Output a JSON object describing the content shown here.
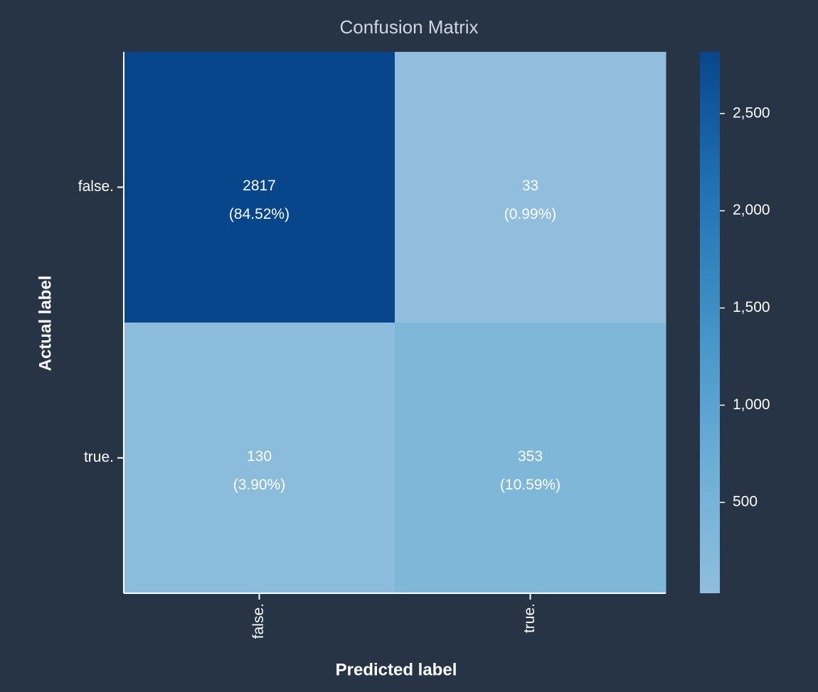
{
  "chart_data": {
    "type": "heatmap",
    "title": "Confusion Matrix",
    "x_label": "Predicted label",
    "y_label": "Actual label",
    "x_categories": [
      "false.",
      "true."
    ],
    "y_categories": [
      "false.",
      "true."
    ],
    "values": [
      [
        2817,
        33
      ],
      [
        130,
        353
      ]
    ],
    "percentages": [
      [
        84.52,
        0.99
      ],
      [
        3.9,
        10.59
      ]
    ],
    "percentage_labels": [
      [
        "(84.52%)",
        "(0.99%)"
      ],
      [
        "(3.90%)",
        "(10.59%)"
      ]
    ],
    "colormap": [
      "#90bedc",
      "#6aaed6",
      "#4292c6",
      "#2171b5",
      "#08468b"
    ],
    "clim": [
      33,
      2817
    ],
    "cticks": [
      {
        "value": 500,
        "label": "500"
      },
      {
        "value": 1000,
        "label": "1,000"
      },
      {
        "value": 1500,
        "label": "1,500"
      },
      {
        "value": 2000,
        "label": "2,000"
      },
      {
        "value": 2500,
        "label": "2,500"
      }
    ]
  }
}
